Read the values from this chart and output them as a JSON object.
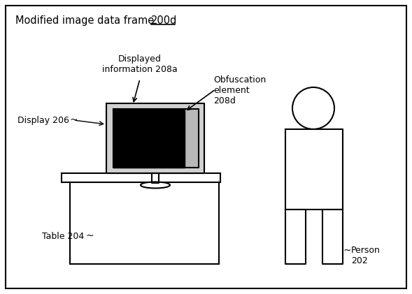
{
  "title_part1": "Modified image data frame ",
  "title_part2": "200d",
  "label_display": "Display 206",
  "label_table": "Table 204",
  "label_person": "Person\n202",
  "label_displayed_info": "Displayed\ninformation 208a",
  "label_obfuscation": "Obfuscation\nelement\n208d",
  "bg_color": "#ffffff",
  "border_color": "#000000",
  "line_color": "#000000"
}
